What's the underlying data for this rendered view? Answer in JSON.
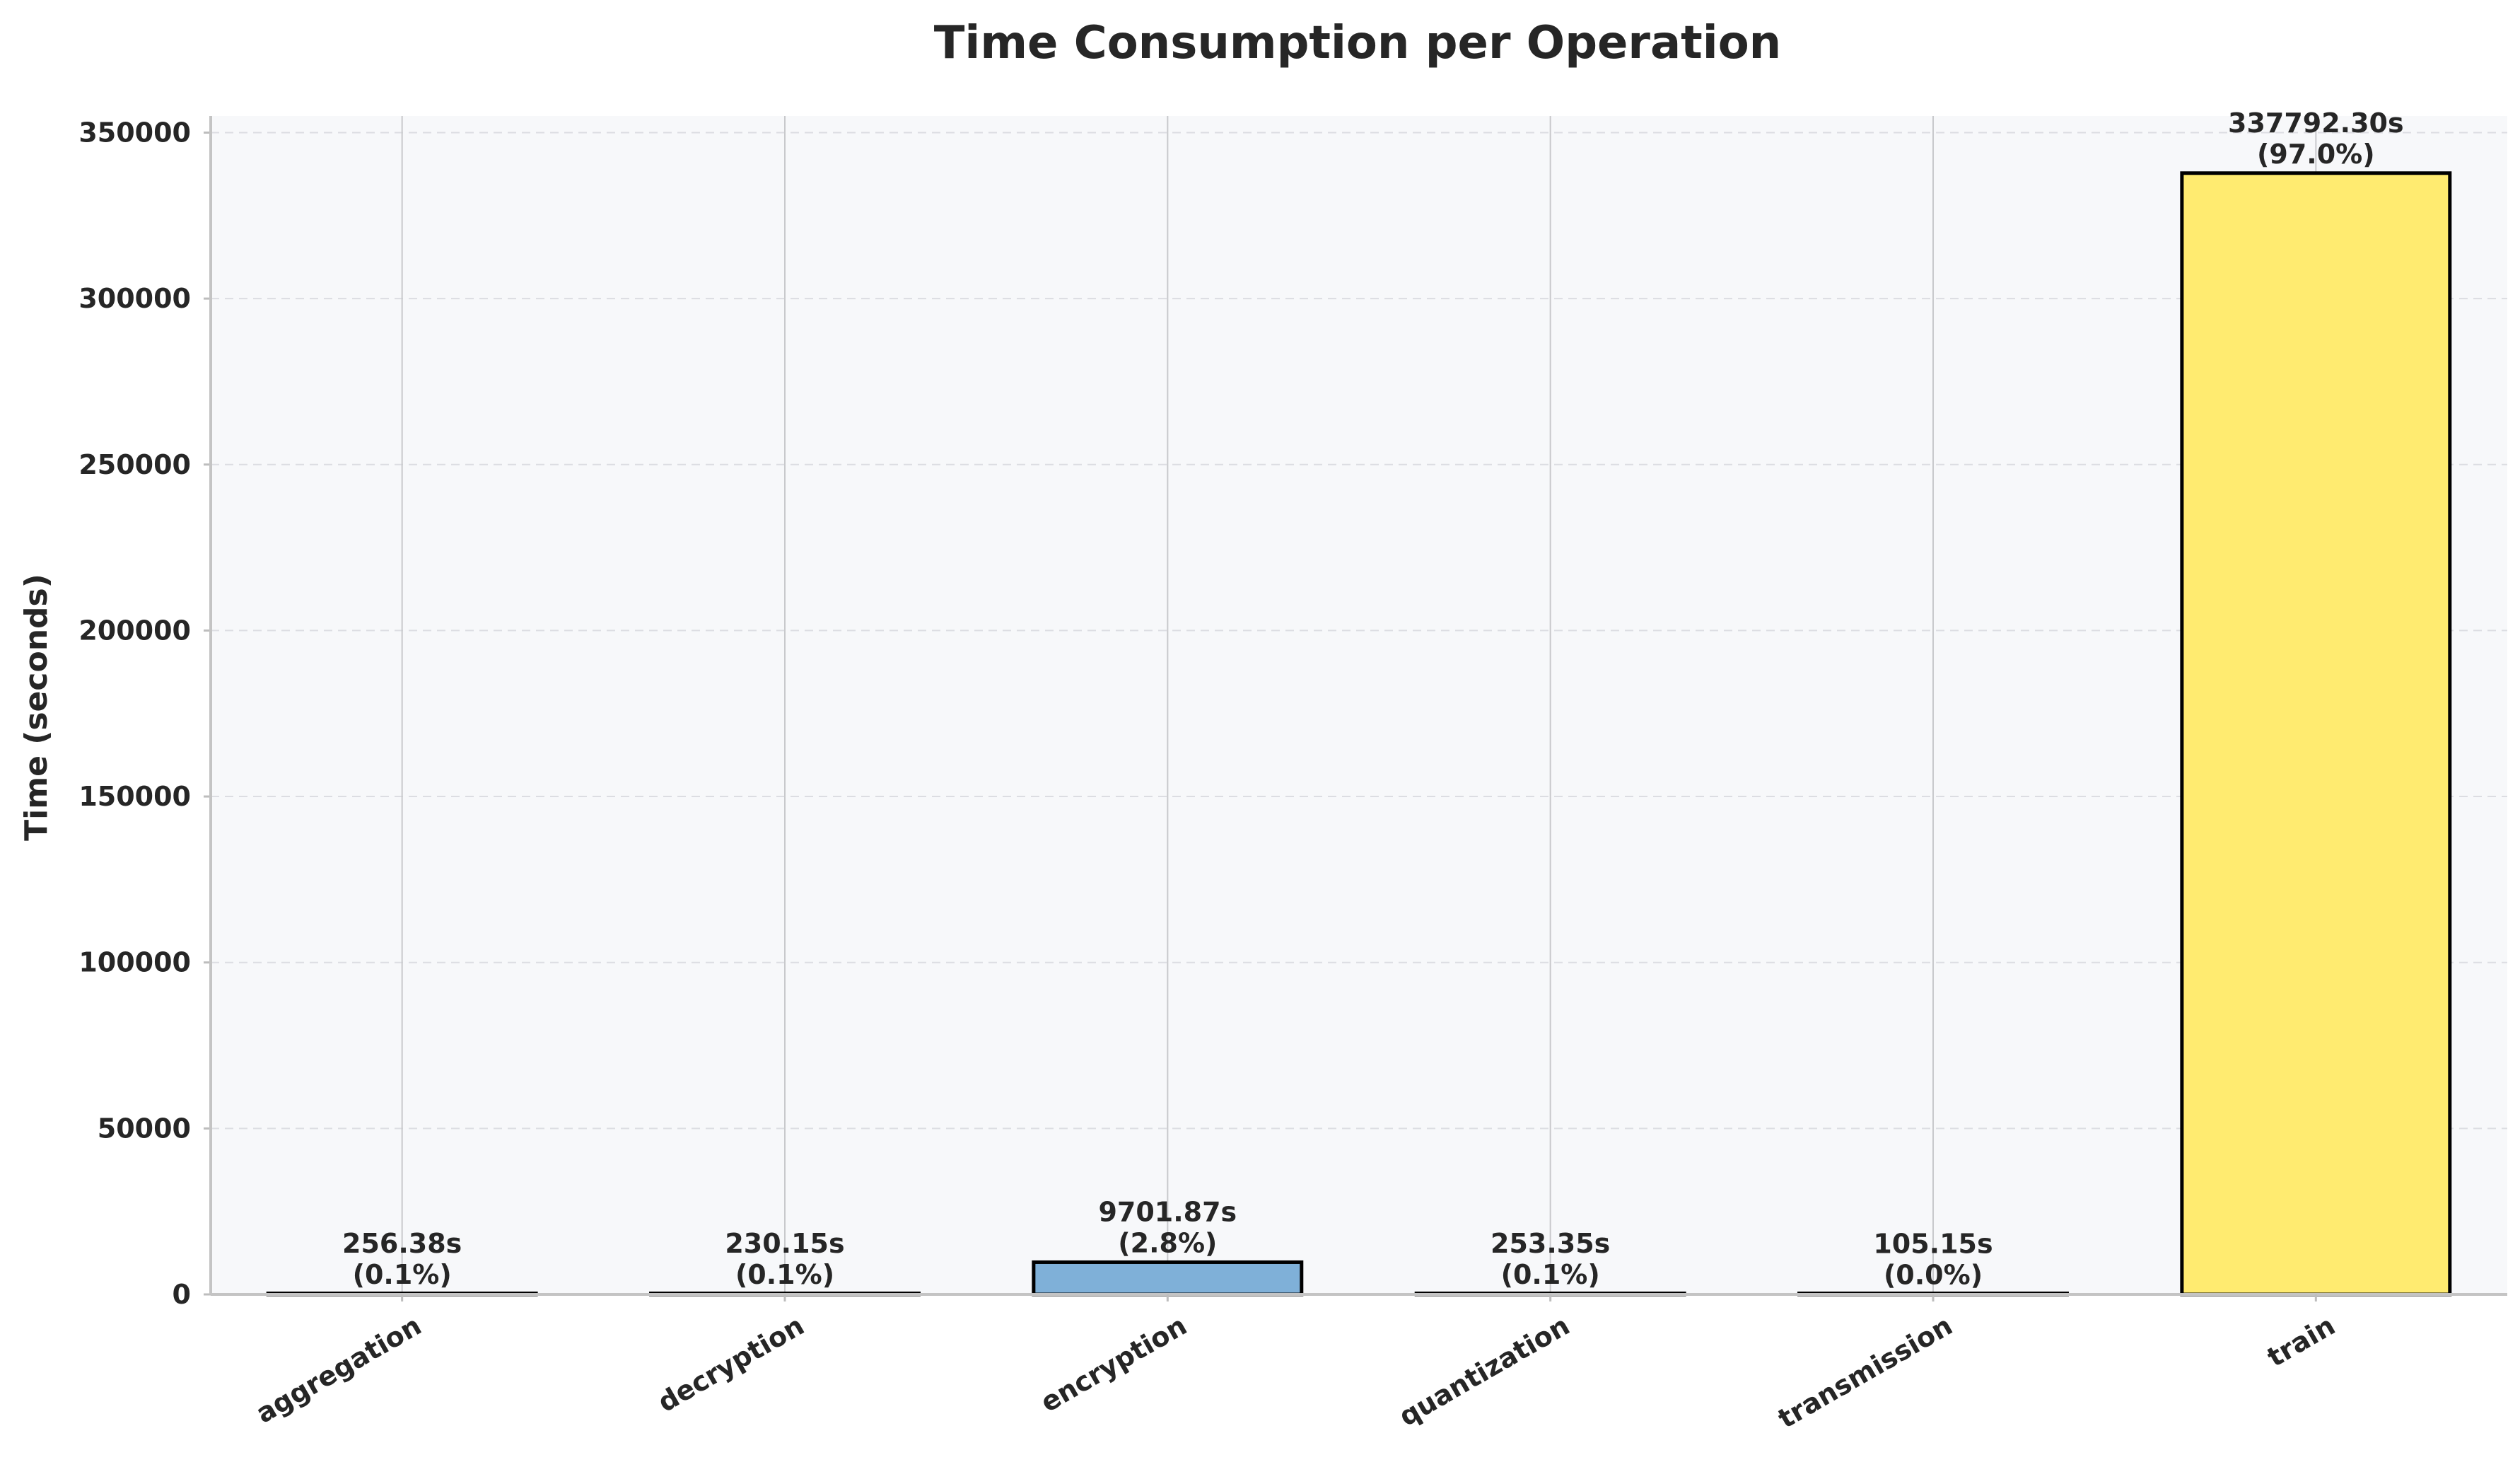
{
  "chart_data": {
    "type": "bar",
    "title": "Time Consumption per Operation",
    "xlabel": "",
    "ylabel": "Time (seconds)",
    "ylim": [
      0,
      355000
    ],
    "yticks": [
      0,
      50000,
      100000,
      150000,
      200000,
      250000,
      300000,
      350000
    ],
    "categories": [
      "aggregation",
      "decryption",
      "encryption",
      "quantization",
      "transmission",
      "train"
    ],
    "values": [
      256.38,
      230.15,
      9701.87,
      253.35,
      105.15,
      337792.3
    ],
    "value_labels": [
      "256.38s",
      "230.15s",
      "9701.87s",
      "253.35s",
      "105.15s",
      "337792.30s"
    ],
    "percent_labels": [
      "(0.1%)",
      "(0.1%)",
      "(2.8%)",
      "(0.1%)",
      "(0.0%)",
      "(97.0%)"
    ],
    "bar_colors": [
      "#3b4cc0",
      "#5a78b8",
      "#7fb0d8",
      "#a8d4c0",
      "#d8e8a0",
      "#ffeb70"
    ],
    "grid": "y-dashed",
    "legend": "none",
    "plot_background": "#f7f8fa"
  }
}
